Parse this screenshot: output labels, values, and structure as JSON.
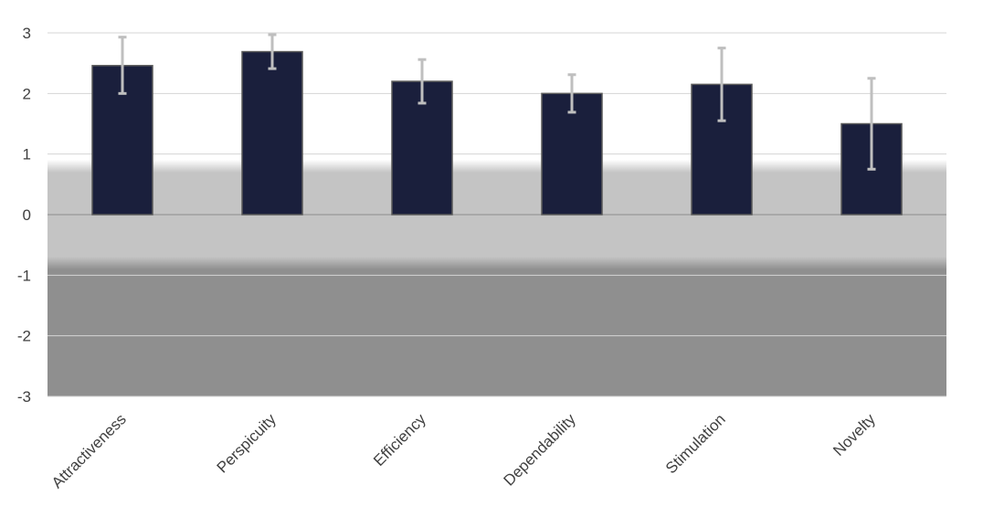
{
  "chart_data": {
    "type": "bar",
    "title": "",
    "xlabel": "",
    "ylabel": "",
    "categories": [
      "Attractiveness",
      "Perspicuity",
      "Efficiency",
      "Dependability",
      "Stimulation",
      "Novelty"
    ],
    "series": [
      {
        "values": [
          2.46,
          2.69,
          2.2,
          2.0,
          2.15,
          1.5
        ],
        "error_low": [
          2.0,
          2.41,
          1.84,
          1.69,
          1.55,
          0.75
        ],
        "error_high": [
          2.93,
          2.97,
          2.56,
          2.31,
          2.75,
          2.25
        ]
      }
    ],
    "ylim": [
      -3,
      3
    ],
    "yticks": [
      3,
      2,
      1,
      0,
      -1,
      -2,
      -3
    ],
    "grid": true,
    "legend": "none",
    "background_bands": [
      {
        "from": 0.8,
        "to": 3,
        "color": "#ffffff"
      },
      {
        "from": -0.8,
        "to": 0.8,
        "color": "#c4c4c4"
      },
      {
        "from": -3,
        "to": -0.8,
        "color": "#8f8f8f"
      }
    ],
    "colors": {
      "bar_fill": "#1a1f3c",
      "bar_stroke": "#5a5a5a",
      "error_bar": "#bfbfbf",
      "gridline": "#d4d4d4",
      "axis_line": "#8c8c8c",
      "label_text": "#404040"
    }
  }
}
